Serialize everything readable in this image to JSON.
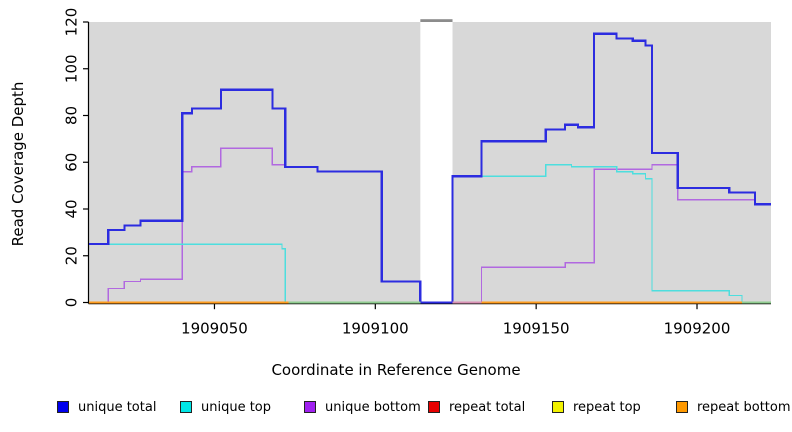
{
  "chart_data": {
    "type": "line",
    "subtype": "step-after-coverage",
    "title": "",
    "xlabel": "Coordinate in Reference Genome",
    "ylabel": "Read Coverage Depth",
    "xlim": [
      1909011,
      1909223
    ],
    "ylim": [
      0,
      120
    ],
    "x_ticks": [
      1909050,
      1909100,
      1909150,
      1909200
    ],
    "y_ticks": [
      0,
      20,
      40,
      60,
      80,
      100,
      120
    ],
    "grid": false,
    "panel_bg": "#d8d8d8",
    "gap": {
      "from": 1909114,
      "to": 1909124,
      "fill": "#ffffff",
      "top_bar_color": "#8c8c8c"
    },
    "series": [
      {
        "name": "unique bottom",
        "color": "#b168e0",
        "width": 1.4,
        "points": [
          [
            1909011,
            0
          ],
          [
            1909017,
            6
          ],
          [
            1909022,
            9
          ],
          [
            1909027,
            10
          ],
          [
            1909040,
            56
          ],
          [
            1909043,
            58
          ],
          [
            1909052,
            66
          ],
          [
            1909068,
            59
          ],
          [
            1909072,
            58
          ],
          [
            1909082,
            56
          ],
          [
            1909102,
            9
          ],
          [
            1909114,
            0
          ],
          [
            1909133,
            15
          ],
          [
            1909159,
            17
          ],
          [
            1909168,
            57
          ],
          [
            1909186,
            59
          ],
          [
            1909194,
            44
          ],
          [
            1909218,
            42
          ]
        ],
        "end": 1909223
      },
      {
        "name": "unique top",
        "color": "#4ddede",
        "width": 1.4,
        "points": [
          [
            1909011,
            25
          ],
          [
            1909071,
            23
          ],
          [
            1909072,
            0
          ],
          [
            1909124,
            54
          ],
          [
            1909153,
            59
          ],
          [
            1909161,
            58
          ],
          [
            1909175,
            56
          ],
          [
            1909180,
            55
          ],
          [
            1909184,
            53
          ],
          [
            1909186,
            5
          ],
          [
            1909210,
            3
          ],
          [
            1909214,
            0
          ]
        ],
        "end": 1909223
      },
      {
        "name": "repeat total",
        "color": "#dd2222",
        "width": 1.4,
        "points": [
          [
            1909011,
            0
          ]
        ],
        "end": 1909223
      },
      {
        "name": "repeat top",
        "color": "#e6e600",
        "width": 1.4,
        "points": [
          [
            1909011,
            0
          ]
        ],
        "end": 1909223
      },
      {
        "name": "repeat bottom",
        "color": "#ff9d1e",
        "width": 2,
        "points": [
          [
            1909011,
            0
          ]
        ],
        "end": 1909223
      },
      {
        "name": "unique total",
        "color": "#2c2ce0",
        "width": 2.2,
        "points": [
          [
            1909011,
            25
          ],
          [
            1909017,
            31
          ],
          [
            1909022,
            33
          ],
          [
            1909027,
            35
          ],
          [
            1909040,
            81
          ],
          [
            1909043,
            83
          ],
          [
            1909052,
            91
          ],
          [
            1909068,
            83
          ],
          [
            1909072,
            58
          ],
          [
            1909082,
            56
          ],
          [
            1909102,
            9
          ],
          [
            1909114,
            0
          ],
          [
            1909124,
            54
          ],
          [
            1909133,
            69
          ],
          [
            1909153,
            74
          ],
          [
            1909159,
            76
          ],
          [
            1909163,
            75
          ],
          [
            1909168,
            115
          ],
          [
            1909175,
            113
          ],
          [
            1909180,
            112
          ],
          [
            1909184,
            110
          ],
          [
            1909186,
            64
          ],
          [
            1909194,
            49
          ],
          [
            1909210,
            47
          ],
          [
            1909218,
            42
          ]
        ],
        "end": 1909223
      }
    ],
    "baseline_blend_segments": [
      {
        "from": 1909073,
        "to": 1909114,
        "color": "#90cd90"
      },
      {
        "from": 1909124,
        "to": 1909133,
        "color": "#d991b4"
      },
      {
        "from": 1909214,
        "to": 1909223,
        "color": "#90cd90"
      }
    ],
    "legend_position": "bottom"
  },
  "legend": {
    "items": [
      {
        "label": "unique total",
        "color": "#0000ee"
      },
      {
        "label": "unique top",
        "color": "#00e6e6"
      },
      {
        "label": "unique bottom",
        "color": "#a020f0"
      },
      {
        "label": "repeat total",
        "color": "#e60000"
      },
      {
        "label": "repeat top",
        "color": "#f2f200"
      },
      {
        "label": "repeat bottom",
        "color": "#ff9900"
      }
    ]
  }
}
